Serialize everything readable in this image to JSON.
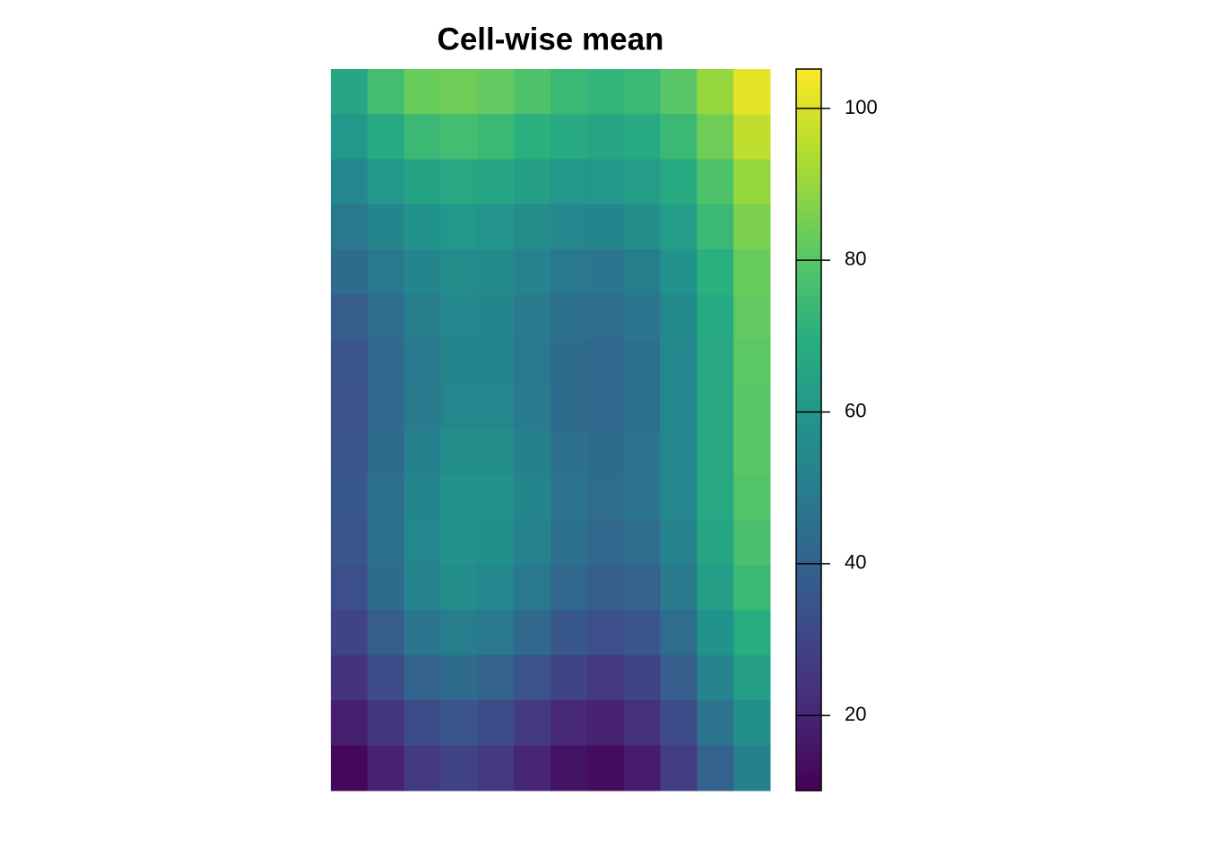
{
  "chart_data": {
    "type": "heatmap",
    "title": "Cell-wise mean",
    "z": [
      [
        66,
        76,
        83,
        84,
        82,
        78,
        74,
        72,
        74,
        80,
        90,
        102
      ],
      [
        60,
        68,
        74,
        76,
        74,
        70,
        68,
        66,
        68,
        74,
        84,
        96
      ],
      [
        54,
        60,
        65,
        67,
        66,
        63,
        60,
        60,
        62,
        68,
        78,
        90
      ],
      [
        48,
        53,
        58,
        60,
        59,
        56,
        54,
        53,
        56,
        62,
        74,
        86
      ],
      [
        43,
        48,
        53,
        56,
        55,
        52,
        48,
        47,
        50,
        58,
        70,
        83
      ],
      [
        38,
        44,
        50,
        54,
        53,
        49,
        45,
        44,
        47,
        55,
        68,
        82
      ],
      [
        35,
        42,
        48,
        53,
        53,
        48,
        43,
        42,
        45,
        54,
        67,
        81
      ],
      [
        34,
        42,
        49,
        54,
        54,
        49,
        43,
        42,
        45,
        54,
        67,
        80
      ],
      [
        35,
        43,
        51,
        56,
        56,
        51,
        45,
        43,
        46,
        54,
        67,
        80
      ],
      [
        36,
        45,
        53,
        58,
        58,
        53,
        46,
        44,
        46,
        54,
        67,
        79
      ],
      [
        35,
        45,
        54,
        58,
        57,
        52,
        45,
        42,
        44,
        52,
        66,
        77
      ],
      [
        33,
        43,
        52,
        56,
        54,
        48,
        42,
        38,
        40,
        49,
        63,
        74
      ],
      [
        29,
        38,
        47,
        50,
        48,
        42,
        36,
        33,
        35,
        44,
        58,
        69
      ],
      [
        24,
        32,
        40,
        43,
        40,
        34,
        29,
        26,
        29,
        38,
        52,
        63
      ],
      [
        18,
        25,
        32,
        35,
        32,
        26,
        21,
        19,
        23,
        32,
        46,
        57
      ],
      [
        12,
        19,
        26,
        29,
        26,
        20,
        15,
        13,
        17,
        27,
        40,
        51
      ]
    ],
    "zlim": [
      10.1,
      105.2
    ],
    "zticks": [
      20,
      40,
      60,
      80,
      100
    ],
    "colormap": [
      "#440154",
      "#472d7b",
      "#3b528b",
      "#2c728e",
      "#21918c",
      "#28ae80",
      "#5ec962",
      "#addc30",
      "#fde725"
    ]
  }
}
